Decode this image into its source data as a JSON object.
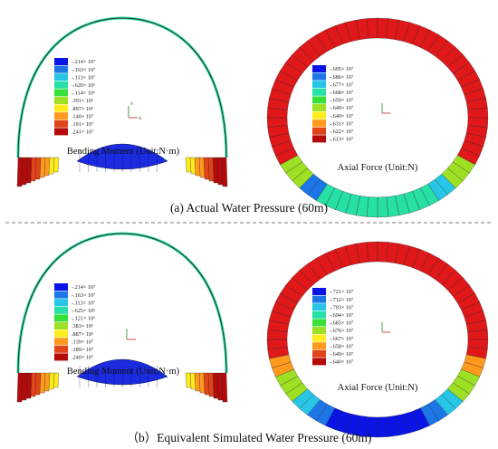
{
  "colors": {
    "contour": [
      "#0a14e6",
      "#1c76e8",
      "#27c6e6",
      "#27e0a6",
      "#38e03a",
      "#9ee024",
      "#ffeb1e",
      "#ff9a1e",
      "#e04418",
      "#b40a0a"
    ],
    "divider": "#7a7a7a",
    "outline": "#2a2a2a"
  },
  "panel_a": {
    "caption": "(a) Actual Water Pressure (60m)",
    "bending": {
      "label": "Bending Moment (Unit:N·m)",
      "legend": [
        "-.214× 10⁷",
        "-.163× 10⁷",
        "-.113× 10⁷",
        "-.620× 10⁶",
        "-.114× 10⁶",
        ".391× 10⁶",
        ".897× 10⁶",
        ".140× 10⁷",
        ".191× 10⁷",
        ".241× 10⁷"
      ]
    },
    "axial": {
      "label": "Axial Force (Unit:N)",
      "legend": [
        "-.695× 10⁷",
        "-.686× 10⁷",
        "-.677× 10⁷",
        "-.668× 10⁷",
        "-.659× 10⁷",
        "-.649× 10⁷",
        "-.640× 10⁷",
        "-.631× 10⁷",
        "-.622× 10⁷",
        "-.613× 10⁷"
      ]
    }
  },
  "panel_b": {
    "caption": "（b）Equivalent Simulated Water Pressure (60m)",
    "bending": {
      "label": "Bending Moment (Unit:N·m)",
      "legend": [
        "-.214× 10⁷",
        "-.163× 10⁷",
        "-.113× 10⁷",
        "-.625× 10⁶",
        "-.121× 10⁶",
        ".383× 10⁶",
        ".887× 10⁶",
        ".139× 10⁷",
        ".189× 10⁷",
        ".240× 10⁷"
      ]
    },
    "axial": {
      "label": "Axial Force (Unit:N)",
      "legend": [
        "-.721× 10⁷",
        "-.712× 10⁷",
        "-.703× 10⁷",
        "-.694× 10⁷",
        "-.685× 10⁷",
        "-.676× 10⁷",
        "-.667× 10⁷",
        "-.658× 10⁷",
        "-.649× 10⁷",
        "-.640× 10⁷"
      ]
    }
  }
}
